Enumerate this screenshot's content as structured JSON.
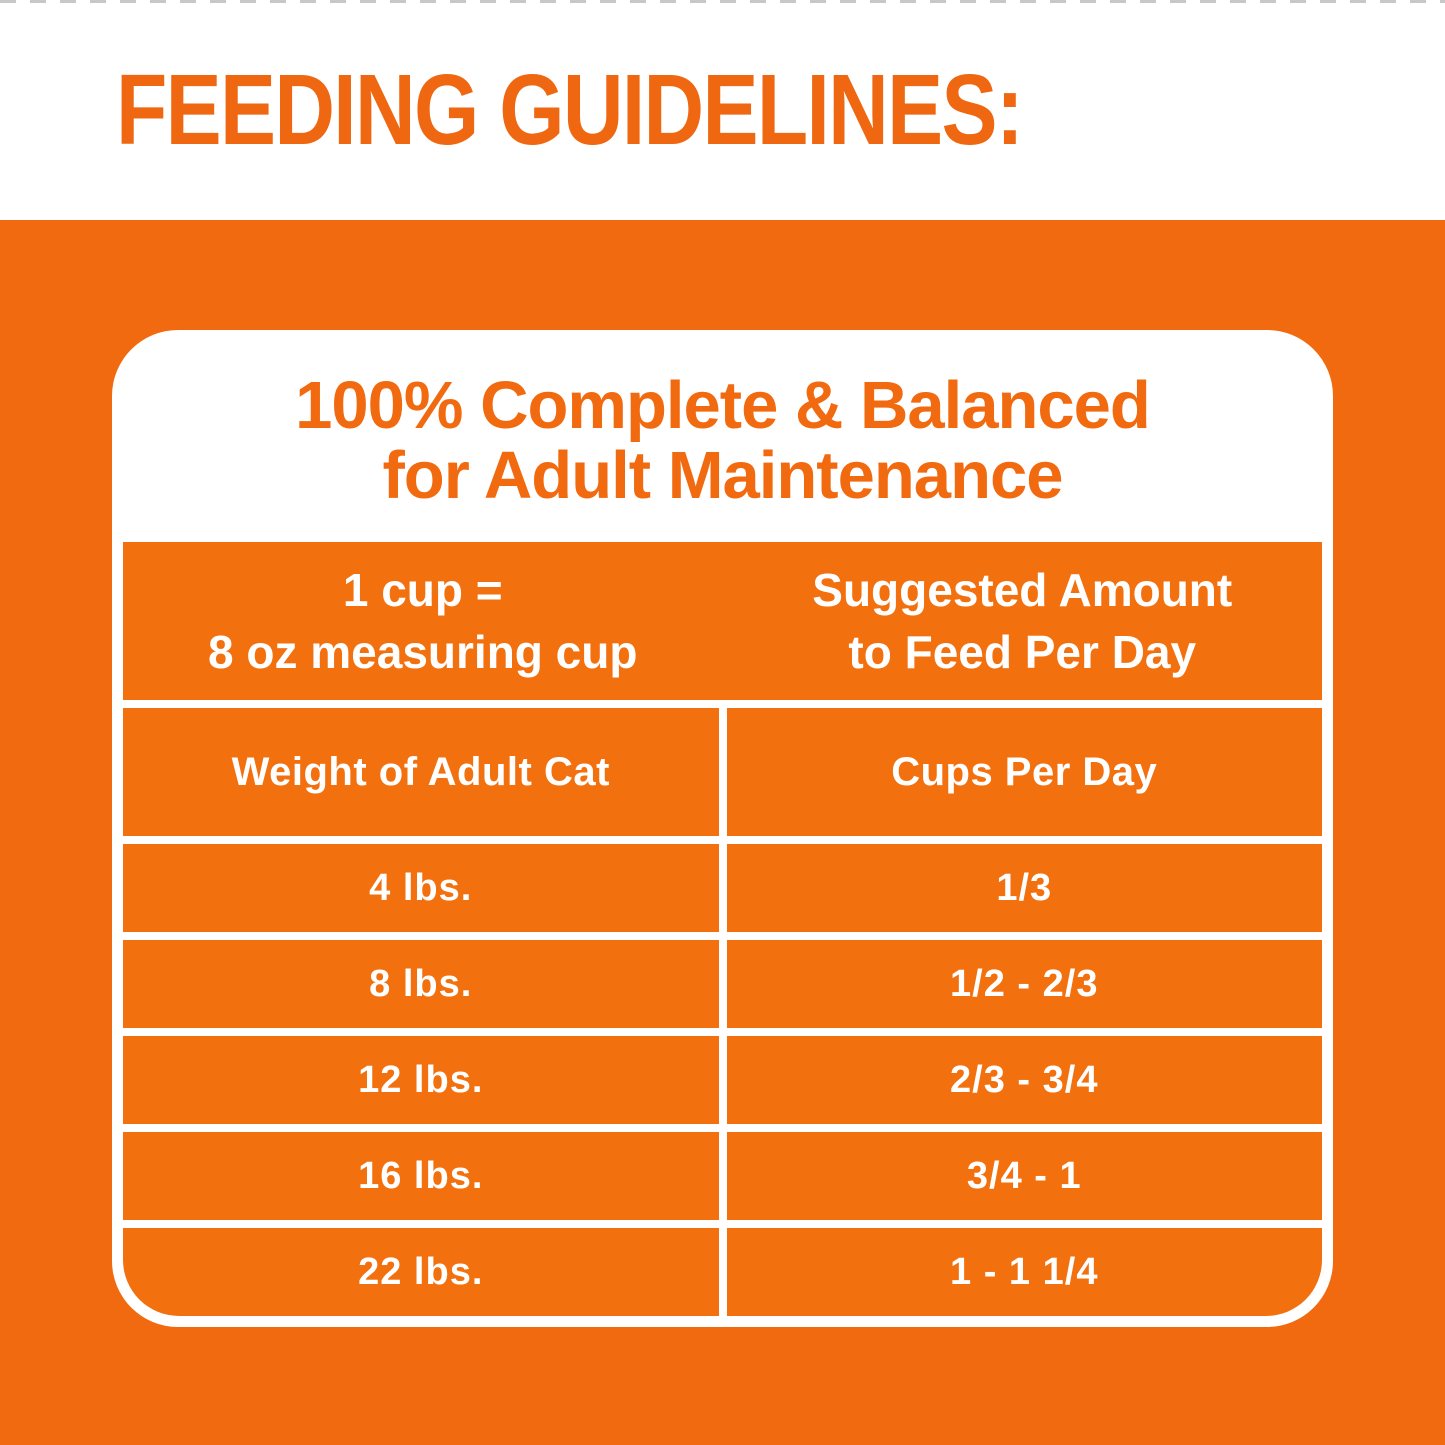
{
  "header": {
    "title": "FEEDING GUIDELINES:"
  },
  "panel": {
    "title_line1": "100% Complete & Balanced",
    "title_line2": "for Adult Maintenance",
    "table": {
      "header": {
        "left_line1": "1 cup =",
        "left_line2": "8 oz measuring cup",
        "right_line1": "Suggested Amount",
        "right_line2": "to Feed Per Day"
      },
      "columns": [
        "Weight of Adult Cat",
        "Cups Per Day"
      ],
      "rows": [
        {
          "weight": "4 lbs.",
          "cups": "1/3"
        },
        {
          "weight": "8 lbs.",
          "cups": "1/2 - 2/3"
        },
        {
          "weight": "12 lbs.",
          "cups": "2/3 - 3/4"
        },
        {
          "weight": "16 lbs.",
          "cups": "3/4 - 1"
        },
        {
          "weight": "22 lbs.",
          "cups": "1 - 1 1/4"
        }
      ]
    }
  },
  "colors": {
    "background_orange": "#F26A10",
    "cell_orange": "#F3700F",
    "heading_orange": "#EF6710",
    "white": "#FFFFFF"
  }
}
